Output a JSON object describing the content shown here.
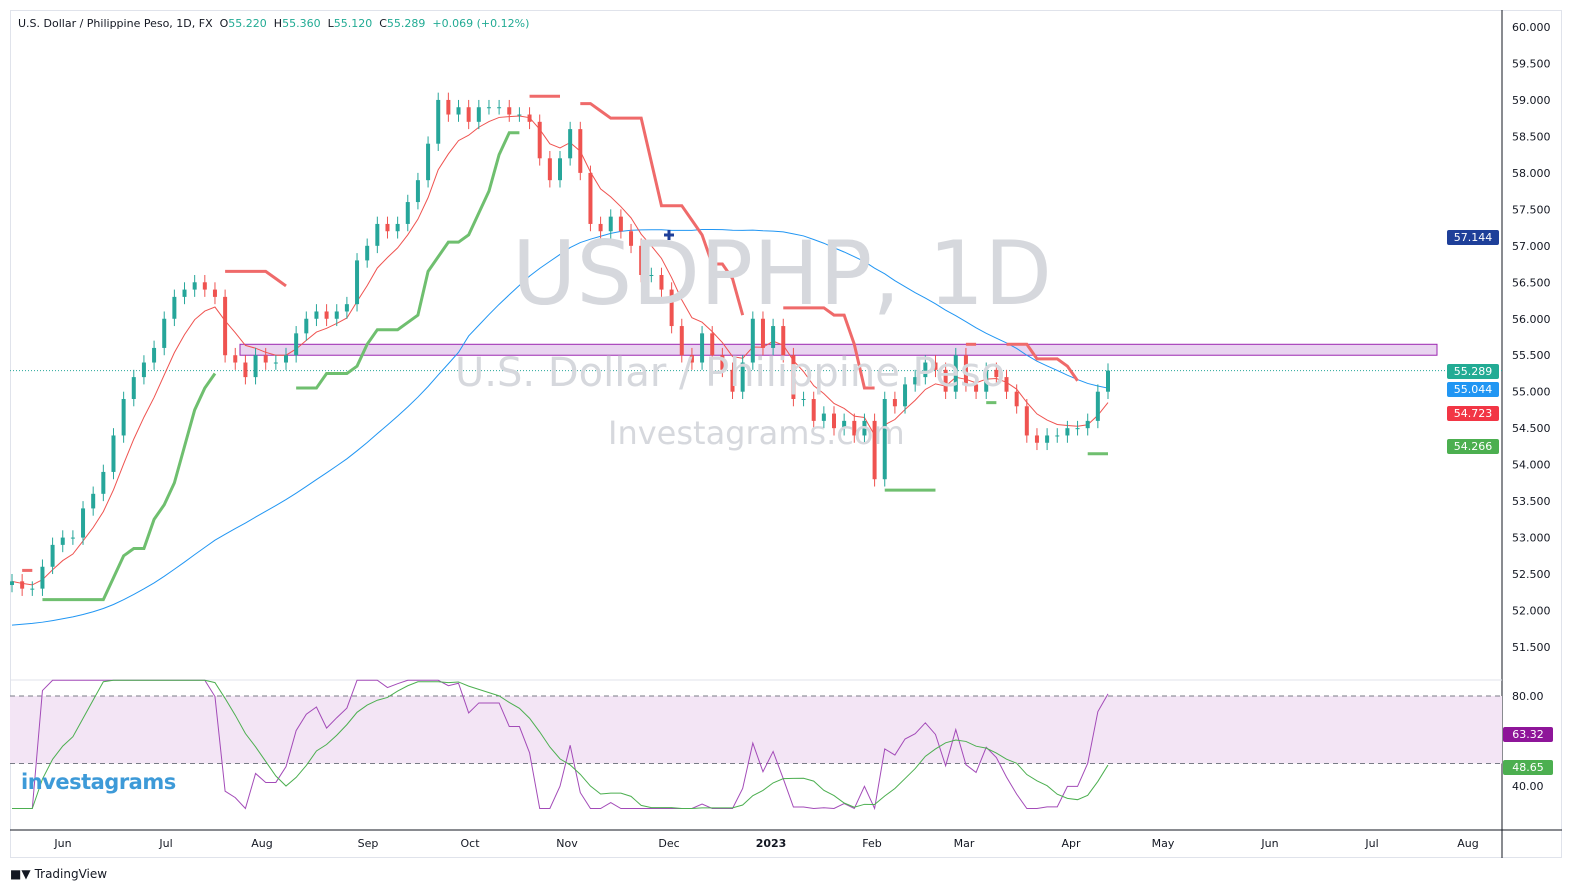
{
  "header": {
    "symbol_desc": "U.S. Dollar / Philippine Peso, 1D, FX",
    "open_label": "O",
    "open": "55.220",
    "high_label": "H",
    "high": "55.360",
    "low_label": "L",
    "low": "55.120",
    "close_label": "C",
    "close": "55.289",
    "change": "+0.069 (+0.12%)"
  },
  "watermark": {
    "symbol": "USDPHP, 1D",
    "description": "U.S. Dollar / Philippine Peso",
    "site": "Investagrams.com"
  },
  "logo": "investagrams",
  "footer": {
    "brand": "TradingView",
    "icon": "tradingview-logo-icon"
  },
  "price_labels": [
    {
      "text": "57.144",
      "color": "#1e3f99"
    },
    {
      "text": "55.289",
      "color": "#22ab94"
    },
    {
      "text": "55.044",
      "color": "#2196f3"
    },
    {
      "text": "54.723",
      "color": "#f23645"
    },
    {
      "text": "54.266",
      "color": "#4caf50"
    }
  ],
  "rsi_labels": [
    {
      "text": "63.32",
      "color": "#8e1599"
    },
    {
      "text": "48.65",
      "color": "#4caf50"
    }
  ],
  "chart_data": {
    "type": "candlestick",
    "title": "U.S. Dollar / Philippine Peso, 1D, FX",
    "ylim": [
      51.2,
      60.2
    ],
    "y_ticks": [
      "60.000",
      "59.500",
      "59.000",
      "58.500",
      "58.000",
      "57.500",
      "57.000",
      "56.500",
      "56.000",
      "55.500",
      "55.000",
      "54.500",
      "54.000",
      "53.500",
      "53.000",
      "52.500",
      "52.000",
      "51.500"
    ],
    "x_ticks": [
      "Jun",
      "Jul",
      "Aug",
      "Sep",
      "Oct",
      "Nov",
      "Dec",
      "2023",
      "Feb",
      "Mar",
      "Apr",
      "May",
      "Jun",
      "Jul",
      "Aug"
    ],
    "closes": [
      52.4,
      52.3,
      52.3,
      52.6,
      52.9,
      53.0,
      53.0,
      53.4,
      53.6,
      53.9,
      54.4,
      54.9,
      55.2,
      55.4,
      55.6,
      56.0,
      56.3,
      56.4,
      56.5,
      56.4,
      56.3,
      55.5,
      55.4,
      55.2,
      55.5,
      55.4,
      55.4,
      55.5,
      55.8,
      56.0,
      56.1,
      56.0,
      56.1,
      56.2,
      56.8,
      57.0,
      57.3,
      57.2,
      57.3,
      57.6,
      57.9,
      58.4,
      59.0,
      58.8,
      58.9,
      58.7,
      58.9,
      58.9,
      58.9,
      58.8,
      58.8,
      58.7,
      58.2,
      57.9,
      58.2,
      58.6,
      58.0,
      57.3,
      57.2,
      57.4,
      57.2,
      57.0,
      56.6,
      56.6,
      56.4,
      55.9,
      55.5,
      55.4,
      55.8,
      55.5,
      55.3,
      55.0,
      55.4,
      56.0,
      55.6,
      55.9,
      55.5,
      54.9,
      54.9,
      54.6,
      54.7,
      54.5,
      54.6,
      54.4,
      54.6,
      53.8,
      54.9,
      54.8,
      55.1,
      55.2,
      55.4,
      55.3,
      55.0,
      55.5,
      55.1,
      55.0,
      55.3,
      55.2,
      55.0,
      54.8,
      54.4,
      54.3,
      54.4,
      54.4,
      54.5,
      54.5,
      54.6,
      55.0,
      55.289
    ],
    "last_price": 55.289,
    "zone": {
      "low": 55.5,
      "high": 55.65,
      "fill": "#e9d5f0",
      "border": "#9c27b0"
    },
    "colors": {
      "up": "#26a69a",
      "down": "#ef5350",
      "ema": "#ef5350",
      "sma": "#2196f3",
      "stop_up": "#6fbf6f",
      "stop_down": "#ef6a6a",
      "rsi": "#a34bb8",
      "rsi_ma": "#4caf50"
    },
    "rsi": {
      "upper": 80,
      "lower": 50,
      "ticks": [
        "80.00",
        "40.00"
      ],
      "ylim": [
        30,
        87
      ],
      "value": 63.32,
      "ma_value": 48.65
    }
  }
}
